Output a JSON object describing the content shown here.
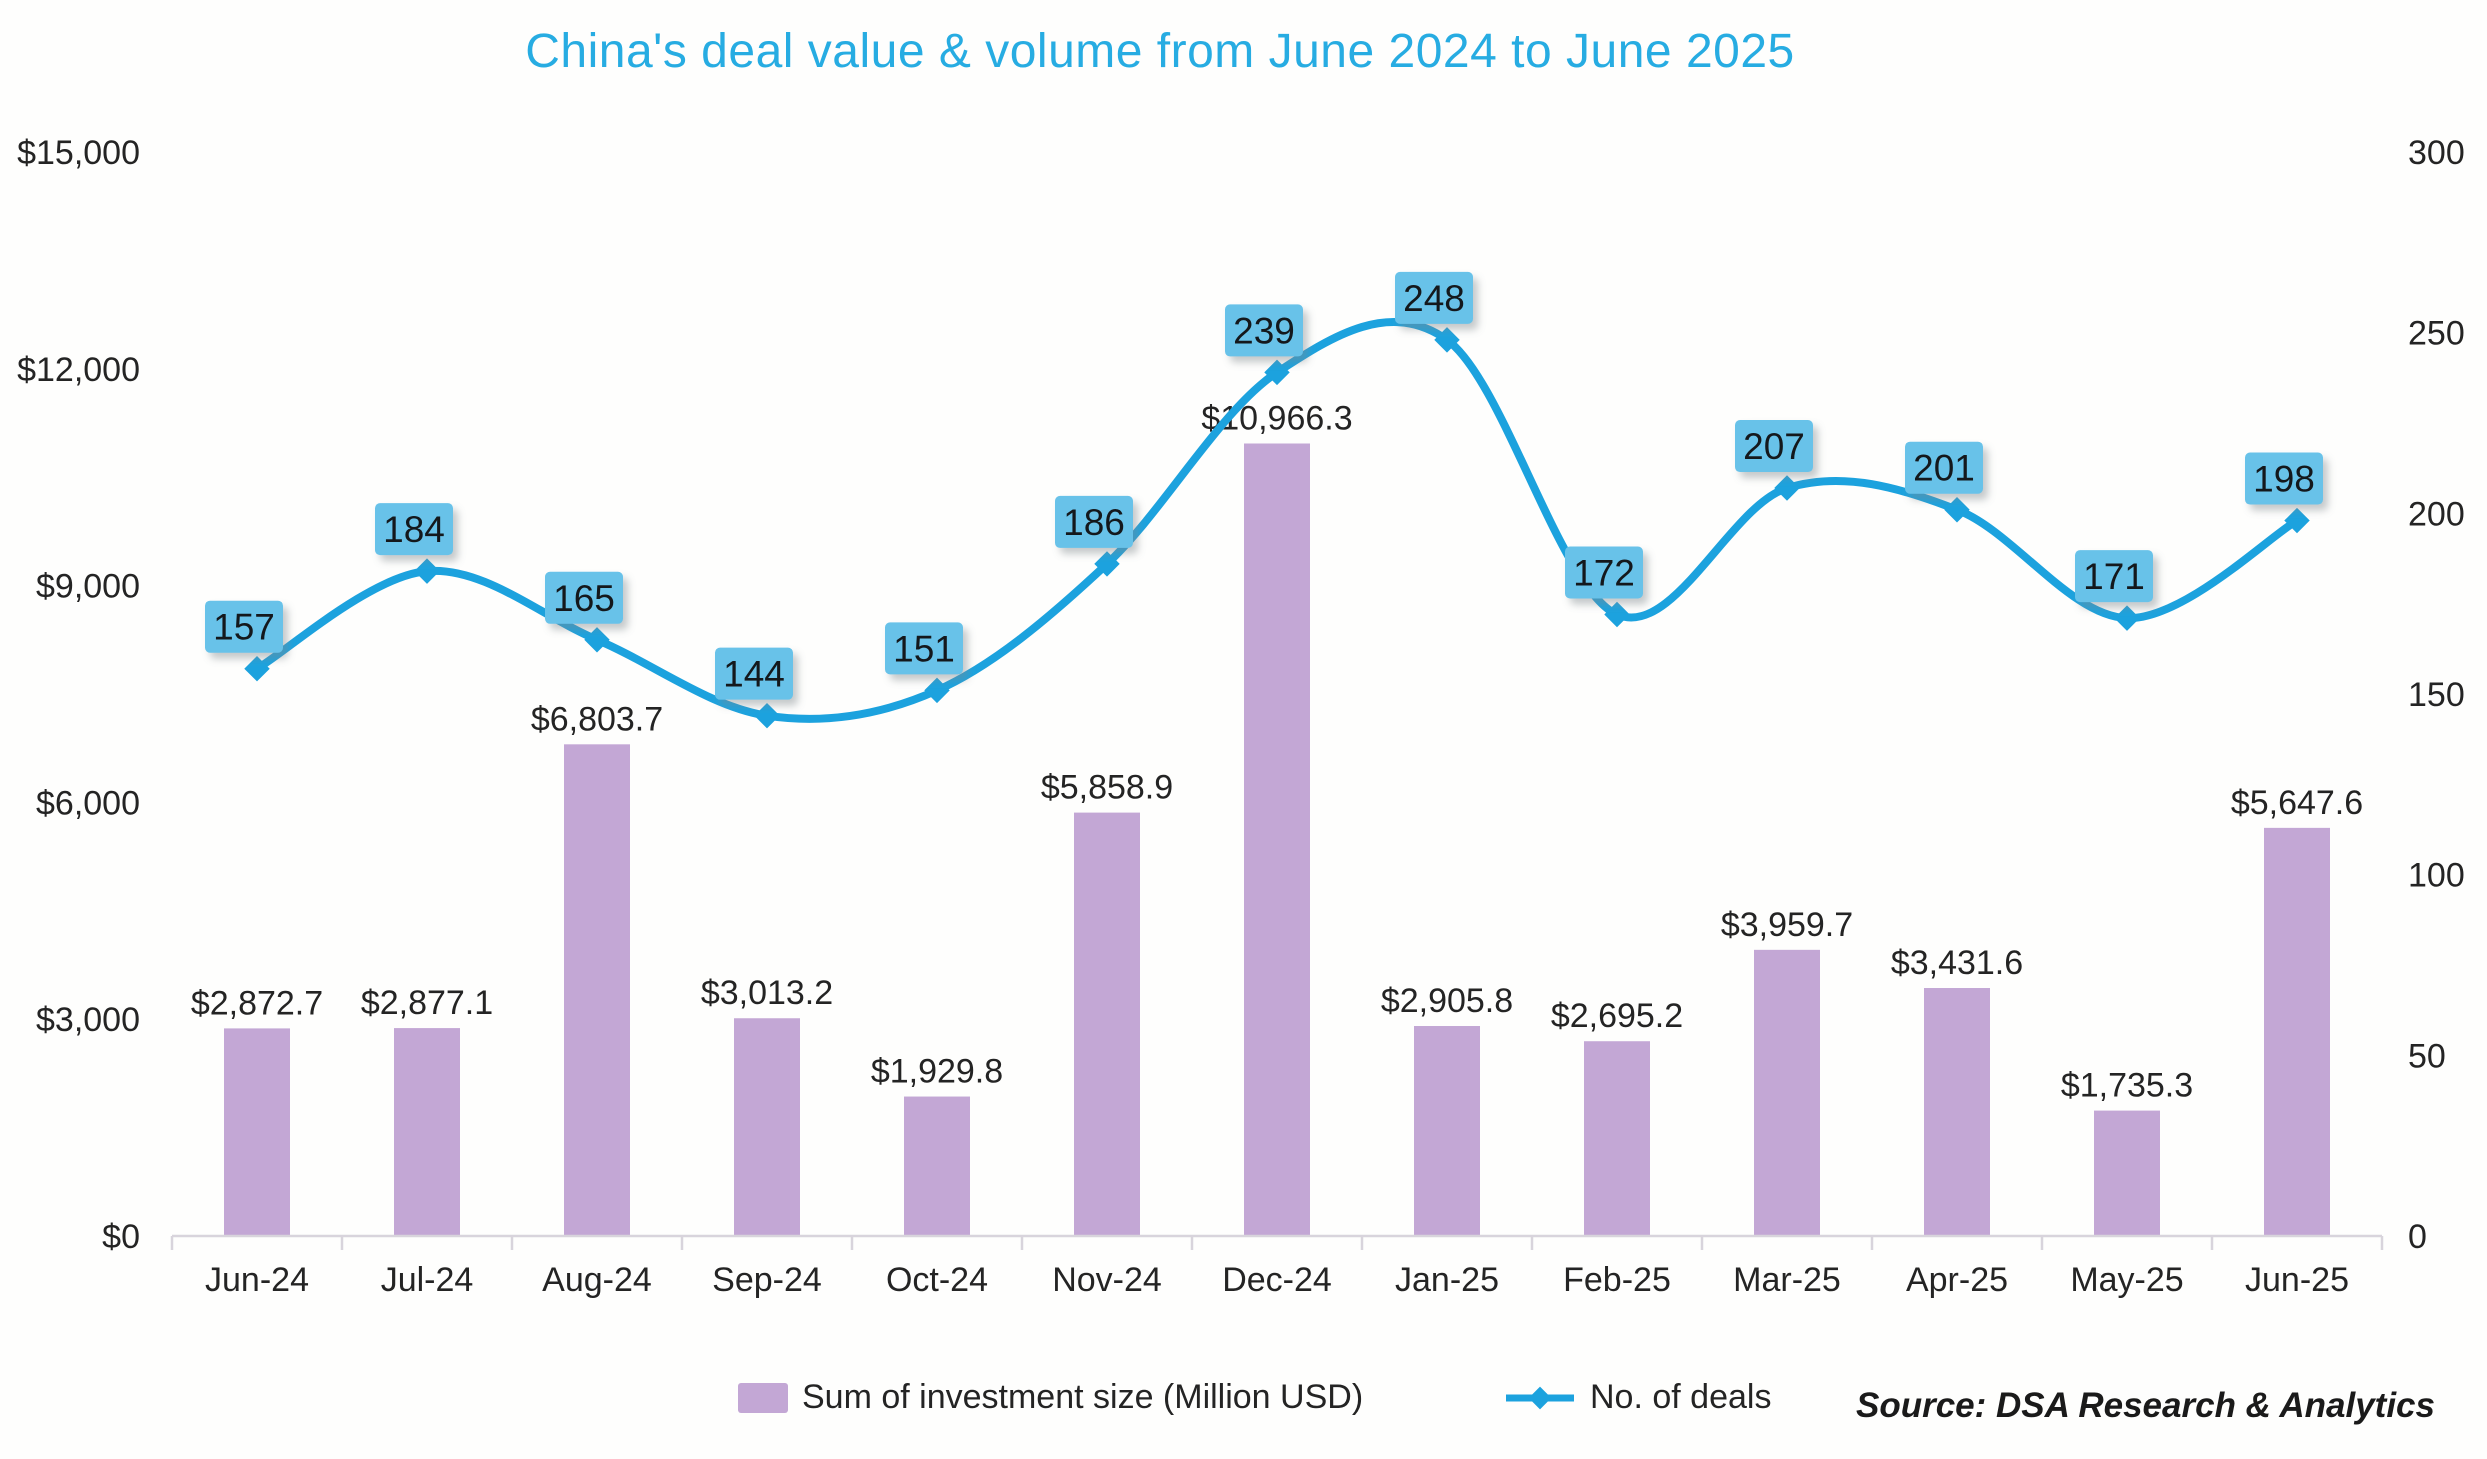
{
  "source_note": "Source: DSA Research & Analytics",
  "chart_data": {
    "type": "combo-bar-line",
    "title": "China's deal value & volume from June 2024 to June 2025",
    "categories": [
      "Jun-24",
      "Jul-24",
      "Aug-24",
      "Sep-24",
      "Oct-24",
      "Nov-24",
      "Dec-24",
      "Jan-25",
      "Feb-25",
      "Mar-25",
      "Apr-25",
      "May-25",
      "Jun-25"
    ],
    "series": [
      {
        "name": "Sum of investment size (Million USD)",
        "type": "bar",
        "axis": "left",
        "color": "#c3a7d5",
        "values": [
          2872.7,
          2877.1,
          6803.7,
          3013.2,
          1929.8,
          5858.9,
          10966.3,
          2905.8,
          2695.2,
          3959.7,
          3431.6,
          1735.3,
          5647.6
        ],
        "labels": [
          "$2,872.7",
          "$2,877.1",
          "$6,803.7",
          "$3,013.2",
          "$1,929.8",
          "$5,858.9",
          "$10,966.3",
          "$2,905.8",
          "$2,695.2",
          "$3,959.7",
          "$3,431.6",
          "$1,735.3",
          "$5,647.6"
        ]
      },
      {
        "name": "No. of deals",
        "type": "line",
        "axis": "right",
        "color": "#1ca2de",
        "label_box_color": "#68c2e9",
        "values": [
          157,
          184,
          165,
          144,
          151,
          186,
          239,
          248,
          172,
          207,
          201,
          171,
          198
        ],
        "labels": [
          "157",
          "184",
          "165",
          "144",
          "151",
          "186",
          "239",
          "248",
          "172",
          "207",
          "201",
          "171",
          "198"
        ]
      }
    ],
    "left_axis": {
      "min": 0,
      "max": 15000,
      "tick_values": [
        0,
        3000,
        6000,
        9000,
        12000,
        15000
      ],
      "tick_labels": [
        "$0",
        "$3,000",
        "$6,000",
        "$9,000",
        "$12,000",
        "$15,000"
      ]
    },
    "right_axis": {
      "min": 0,
      "max": 300,
      "tick_values": [
        0,
        50,
        100,
        150,
        200,
        250,
        300
      ],
      "tick_labels": [
        "0",
        "50",
        "100",
        "150",
        "200",
        "250",
        "300"
      ]
    },
    "grid": false,
    "legend_position": "bottom",
    "colors": {
      "title": "#27ace2",
      "text": "#242424",
      "axis_line": "#d8d4dc",
      "label_box_text": "#14181c"
    }
  }
}
